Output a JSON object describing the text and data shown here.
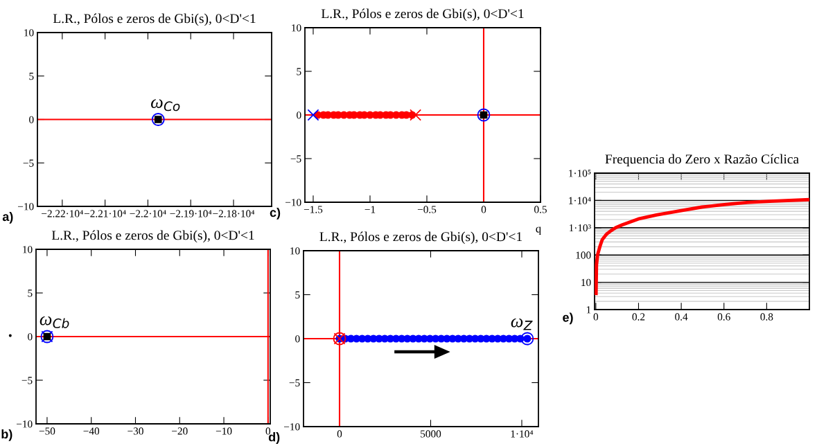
{
  "chart_data": [
    {
      "type": "scatter",
      "title": "L.R., Pólos e zeros de Gbi(s), 0<D'<1",
      "xlim": [
        -22258,
        -21711
      ],
      "xticks": [
        {
          "value": -22200,
          "label": "−2.22·10⁴"
        },
        {
          "value": -22100,
          "label": "−2.21·10⁴"
        },
        {
          "value": -22000,
          "label": "−2.2·10⁴"
        },
        {
          "value": -21900,
          "label": "−2.19·10⁴"
        },
        {
          "value": -21800,
          "label": "−2.18·10⁴"
        }
      ],
      "ylim": [
        -10,
        10
      ],
      "yticks": [
        {
          "value": -10,
          "label": "−10"
        },
        {
          "value": -5,
          "label": "−5"
        },
        0,
        5,
        10
      ],
      "grid": false,
      "ref_lines": [
        {
          "axis": "y",
          "value": 0,
          "color": "#ff0000"
        }
      ],
      "series": [
        {
          "marker": "circle",
          "color": "#0000ff",
          "x": [
            -21976
          ],
          "values": [
            0
          ]
        },
        {
          "marker": "square",
          "color": "#000000",
          "x": [
            -21976
          ],
          "values": [
            0
          ]
        }
      ],
      "annotations": [
        "a)",
        {
          "text": "ω$_{Co}$",
          "x": -21976,
          "y": 0
        }
      ]
    },
    {
      "type": "scatter",
      "title": "L.R., Pólos e zeros de Gbi(s), 0<D'<1",
      "xlim": [
        -52.5,
        0.5
      ],
      "xticks": [
        {
          "value": -50,
          "label": "−50"
        },
        {
          "value": -40,
          "label": "−40"
        },
        {
          "value": -30,
          "label": "−30"
        },
        {
          "value": -20,
          "label": "−20"
        },
        {
          "value": -10,
          "label": "−10"
        },
        0
      ],
      "ylim": [
        -10,
        10
      ],
      "yticks": [
        {
          "value": -10,
          "label": "−10"
        },
        {
          "value": -5,
          "label": "−5"
        },
        0,
        5,
        10
      ],
      "grid": false,
      "ref_lines": [
        {
          "axis": "y",
          "value": 0,
          "color": "#ff0000"
        },
        {
          "axis": "x",
          "value": 0,
          "color": "#ff0000"
        }
      ],
      "series": [
        {
          "marker": "circle",
          "color": "#0000ff",
          "x": [
            -50
          ],
          "values": [
            0
          ]
        },
        {
          "marker": "square",
          "color": "#000000",
          "x": [
            -50
          ],
          "values": [
            0
          ]
        },
        {
          "marker": "cross",
          "color": "#0000ff",
          "x": [
            -50
          ],
          "values": [
            0
          ]
        }
      ],
      "annotations": [
        "b)",
        "•",
        {
          "text": "ω$_{Cb}$",
          "x": -50,
          "y": 0
        }
      ]
    },
    {
      "type": "scatter",
      "title": "L.R., Pólos e zeros de Gbi(s), 0<D'<1",
      "xlim": [
        -1.573,
        0.5
      ],
      "xticks": [
        {
          "value": -1.5,
          "label": "−1.5"
        },
        {
          "value": -1,
          "label": "−1"
        },
        {
          "value": -0.5,
          "label": "−0.5"
        },
        0,
        0.5
      ],
      "ylim": [
        -10,
        10
      ],
      "yticks": [
        {
          "value": -10,
          "label": "−10"
        },
        {
          "value": -5,
          "label": "−5"
        },
        0,
        5,
        10
      ],
      "grid": false,
      "ref_lines": [
        {
          "axis": "y",
          "value": 0,
          "color": "#ff0000"
        },
        {
          "axis": "x",
          "value": 0,
          "color": "#ff0000"
        }
      ],
      "series": [
        {
          "marker": "circle",
          "color": "#ff0000",
          "x": [
            -1.46,
            -1.41,
            -1.37,
            -1.32,
            -1.28,
            -1.23,
            -1.18,
            -1.14,
            -1.09,
            -1.05,
            -1.0,
            -0.95,
            -0.91,
            -0.86,
            -0.82,
            -0.77,
            -0.72,
            -0.68,
            -0.63
          ],
          "values": [
            0,
            0,
            0,
            0,
            0,
            0,
            0,
            0,
            0,
            0,
            0,
            0,
            0,
            0,
            0,
            0,
            0,
            0,
            0
          ]
        },
        {
          "marker": "cross",
          "color": "#0000ff",
          "x": [
            -1.5
          ],
          "values": [
            0
          ]
        },
        {
          "marker": "cross",
          "color": "#ff0000",
          "x": [
            -0.6
          ],
          "values": [
            0
          ]
        },
        {
          "marker": "circle",
          "color": "#0000ff",
          "x": [
            0
          ],
          "values": [
            0
          ]
        },
        {
          "marker": "square",
          "color": "#000000",
          "x": [
            0
          ],
          "values": [
            0
          ]
        }
      ],
      "annotations": [
        "c)"
      ]
    },
    {
      "type": "scatter",
      "title": "L.R., Pólos e zeros de Gbi(s), 0<D'<1",
      "xlim": [
        -1977,
        10913
      ],
      "xticks": [
        0,
        5000,
        {
          "value": 10000,
          "label": "1·10⁴"
        }
      ],
      "ylim": [
        -10,
        10
      ],
      "yticks": [
        {
          "value": -10,
          "label": "−10"
        },
        {
          "value": -5,
          "label": "−5"
        },
        0,
        5,
        10
      ],
      "grid": false,
      "ref_lines": [
        {
          "axis": "y",
          "value": 0,
          "color": "#ff0000"
        },
        {
          "axis": "x",
          "value": 0,
          "color": "#ff0000"
        }
      ],
      "series": [
        {
          "marker": "circle",
          "color": "#0000ff",
          "x": [
            0,
            310,
            620,
            930,
            1240,
            1550,
            1860,
            2170,
            2480,
            2790,
            3100,
            3410,
            3720,
            4030,
            4340,
            4650,
            4960,
            5270,
            5580,
            5890,
            6200,
            6510,
            6820,
            7130,
            7440,
            7750,
            8060,
            8370,
            8680,
            8990,
            9300,
            9610,
            9920,
            10300
          ],
          "values": [
            0,
            0,
            0,
            0,
            0,
            0,
            0,
            0,
            0,
            0,
            0,
            0,
            0,
            0,
            0,
            0,
            0,
            0,
            0,
            0,
            0,
            0,
            0,
            0,
            0,
            0,
            0,
            0,
            0,
            0,
            0,
            0,
            0,
            0
          ]
        },
        {
          "marker": "circle",
          "color": "#ff0000",
          "x": [
            0
          ],
          "values": [
            0
          ]
        },
        {
          "marker": "cross",
          "color": "#ff0000",
          "x": [
            0
          ],
          "values": [
            0
          ]
        },
        {
          "marker": "circle",
          "color": "#0000ff",
          "x": [
            10300
          ],
          "values": [
            0
          ]
        }
      ],
      "annotations": [
        "d)",
        "q",
        {
          "text": "ω$_{Z}$",
          "x": 10300,
          "y": 0
        }
      ]
    },
    {
      "type": "line",
      "title": "Frequencia do Zero x Razão Cíclica",
      "log": "y",
      "xlim": [
        -0.006,
        1.0
      ],
      "xticks": [
        0,
        0.2,
        0.4,
        0.6,
        0.8
      ],
      "ylim": [
        1,
        100000
      ],
      "yticks": [
        1,
        10,
        100,
        {
          "value": 1000,
          "label": "1·10³"
        },
        {
          "value": 10000,
          "label": "1·10⁴"
        },
        {
          "value": 100000,
          "label": "1·10⁵"
        }
      ],
      "grid": "y",
      "series": [
        {
          "marker": "none",
          "line_style": "solid",
          "color": "#ff0000",
          "x": [
            0.001,
            0.003,
            0.008,
            0.019,
            0.03,
            0.051,
            0.072,
            0.093,
            0.125,
            0.199,
            0.284,
            0.39,
            0.496,
            0.602,
            0.708,
            0.814,
            1.0
          ],
          "values": [
            3.9,
            43,
            100,
            204,
            365,
            590,
            790,
            1000,
            1290,
            2090,
            2950,
            4100,
            5700,
            7060,
            8400,
            9300,
            10700
          ]
        }
      ],
      "annotations": [
        "e)"
      ]
    }
  ]
}
